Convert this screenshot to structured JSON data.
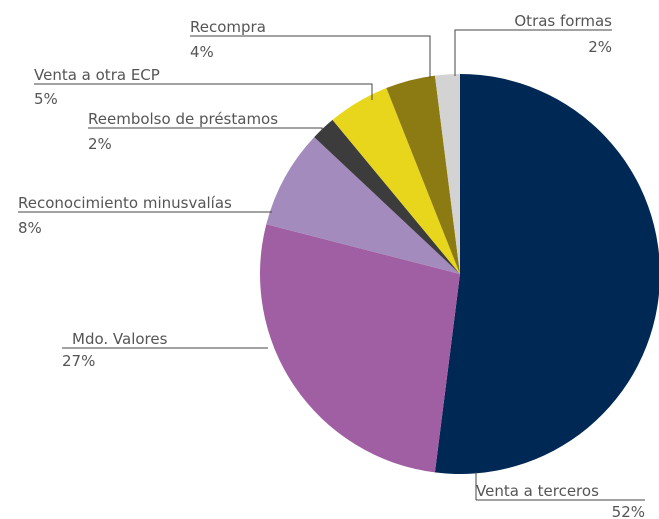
{
  "chart_data": {
    "type": "pie",
    "categories": [
      "Venta a terceros",
      "Mdo. Valores",
      "Reconocimiento minusvalías",
      "Reembolso de préstamos",
      "Venta a otra ECP",
      "Recompra",
      "Otras formas"
    ],
    "values": [
      52,
      27,
      8,
      2,
      5,
      4,
      2
    ],
    "value_labels": [
      "52%",
      "27%",
      "8%",
      "2%",
      "5%",
      "4%",
      "2%"
    ],
    "colors": [
      "#002855",
      "#a05fa3",
      "#a38bbd",
      "#3c3c3c",
      "#e8d61c",
      "#8c7a12",
      "#d3d3d3"
    ]
  }
}
